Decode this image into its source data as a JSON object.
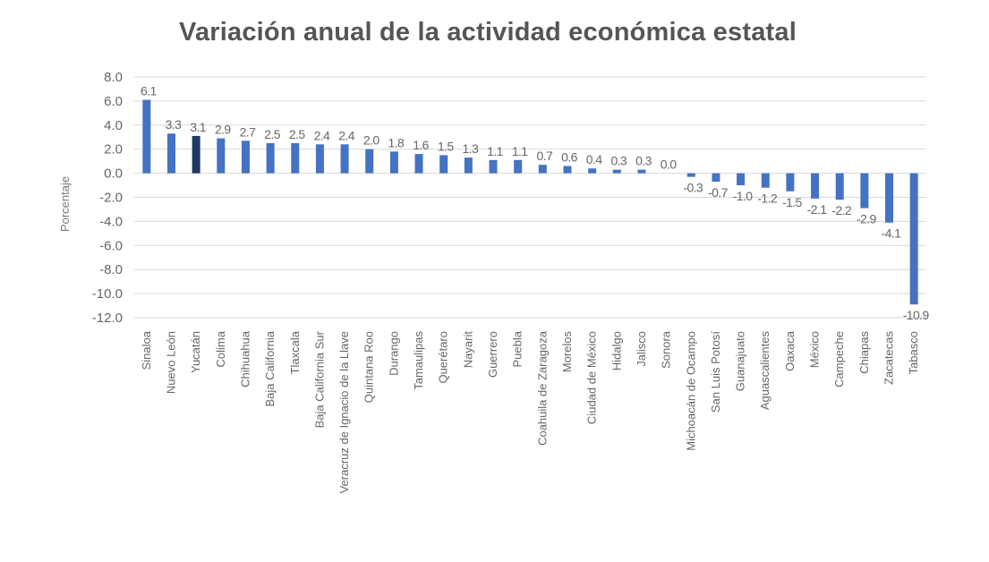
{
  "chart_data": {
    "type": "bar",
    "title": "Variación anual de la actividad económica estatal",
    "ylabel": "Porcentaje",
    "xlabel": "",
    "ylim": [
      -12.0,
      8.0
    ],
    "yticks": [
      "8.0",
      "6.0",
      "4.0",
      "2.0",
      "0.0",
      "-2.0",
      "-4.0",
      "-6.0",
      "-8.0",
      "-10.0",
      "-12.0"
    ],
    "grid": true,
    "colors": {
      "bar": "#4472c4",
      "highlight": "#1f3864",
      "grid": "#d9d9d9"
    },
    "highlight_category": "Yucatán",
    "categories": [
      "Sinaloa",
      "Nuevo León",
      "Yucatán",
      "Colima",
      "Chihuahua",
      "Baja California",
      "Tlaxcala",
      "Baja California Sur",
      "Veracruz de Ignacio de la Llave",
      "Quintana Roo",
      "Durango",
      "Tamaulipas",
      "Querétaro",
      "Nayarit",
      "Guerrero",
      "Puebla",
      "Coahuila de Zaragoza",
      "Morelos",
      "Ciudad de México",
      "Hidalgo",
      "Jalisco",
      "Sonora",
      "Michoacán de Ocampo",
      "San Luis Potosí",
      "Guanajuato",
      "Aguascalientes",
      "Oaxaca",
      "México",
      "Campeche",
      "Chiapas",
      "Zacatecas",
      "Tabasco"
    ],
    "values": [
      6.1,
      3.3,
      3.1,
      2.9,
      2.7,
      2.5,
      2.5,
      2.4,
      2.4,
      2.0,
      1.8,
      1.6,
      1.5,
      1.3,
      1.1,
      1.1,
      0.7,
      0.6,
      0.4,
      0.3,
      0.3,
      0.0,
      -0.3,
      -0.7,
      -1.0,
      -1.2,
      -1.5,
      -2.1,
      -2.2,
      -2.9,
      -4.1,
      -10.9
    ],
    "data_labels": [
      "6.1",
      "3.3",
      "3.1",
      "2.9",
      "2.7",
      "2.5",
      "2.5",
      "2.4",
      "2.4",
      "2.0",
      "1.8",
      "1.6",
      "1.5",
      "1.3",
      "1.1",
      "1.1",
      "0.7",
      "0.6",
      "0.4",
      "0.3",
      "0.3",
      "0.0",
      "-0.3",
      "-0.7",
      "-1.0",
      "-1.2",
      "-1.5",
      "-2.1",
      "-2.2",
      "-2.9",
      "-4.1",
      "-10.9"
    ]
  }
}
